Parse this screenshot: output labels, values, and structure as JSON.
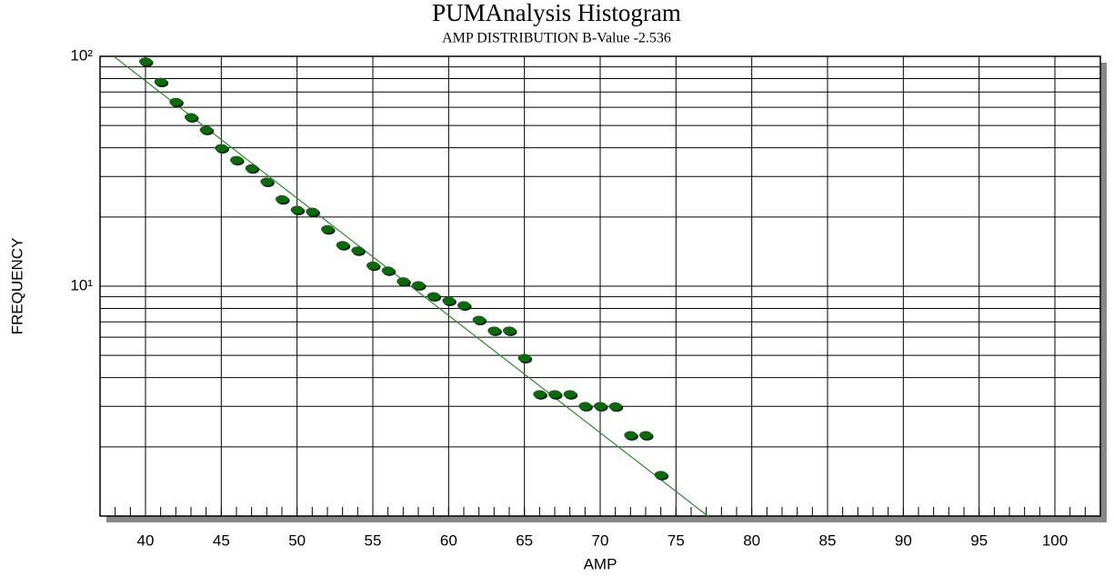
{
  "chart_data": {
    "type": "scatter",
    "title": "PUMAnalysis Histogram",
    "subtitle": "AMP DISTRIBUTION B-Value -2.536",
    "xlabel": "AMP",
    "ylabel": "FREQUENCY",
    "log_y": true,
    "grid": true,
    "xlim": [
      37,
      103
    ],
    "ylim": [
      1,
      100
    ],
    "xticks": [
      40,
      45,
      50,
      55,
      60,
      65,
      70,
      75,
      80,
      85,
      90,
      95,
      100
    ],
    "yticks": [
      {
        "value": 10,
        "label": "10¹"
      },
      {
        "value": 100,
        "label": "10²"
      }
    ],
    "points": {
      "color": "#0b6b0b",
      "x": [
        40,
        41,
        42,
        43,
        44,
        45,
        46,
        47,
        48,
        49,
        50,
        51,
        52,
        53,
        54,
        55,
        56,
        57,
        58,
        59,
        60,
        61,
        62,
        63,
        64,
        65,
        66,
        67,
        68,
        69,
        70,
        71,
        72,
        73,
        74
      ],
      "y": [
        95,
        77.5,
        63.4,
        54.4,
        47.9,
        39.9,
        35.4,
        32.6,
        28.5,
        23.9,
        21.5,
        21.1,
        17.7,
        15.1,
        14.3,
        12.3,
        11.7,
        10.5,
        10.1,
        9.05,
        8.65,
        8.26,
        7.14,
        6.41,
        6.41,
        4.87,
        3.39,
        3.39,
        3.39,
        3.01,
        3.01,
        3.0,
        2.25,
        2.25,
        1.51
      ]
    },
    "fit_line": {
      "color": "#2a8a2a",
      "x": [
        37.9,
        77.1
      ],
      "y": [
        100,
        1
      ]
    }
  }
}
